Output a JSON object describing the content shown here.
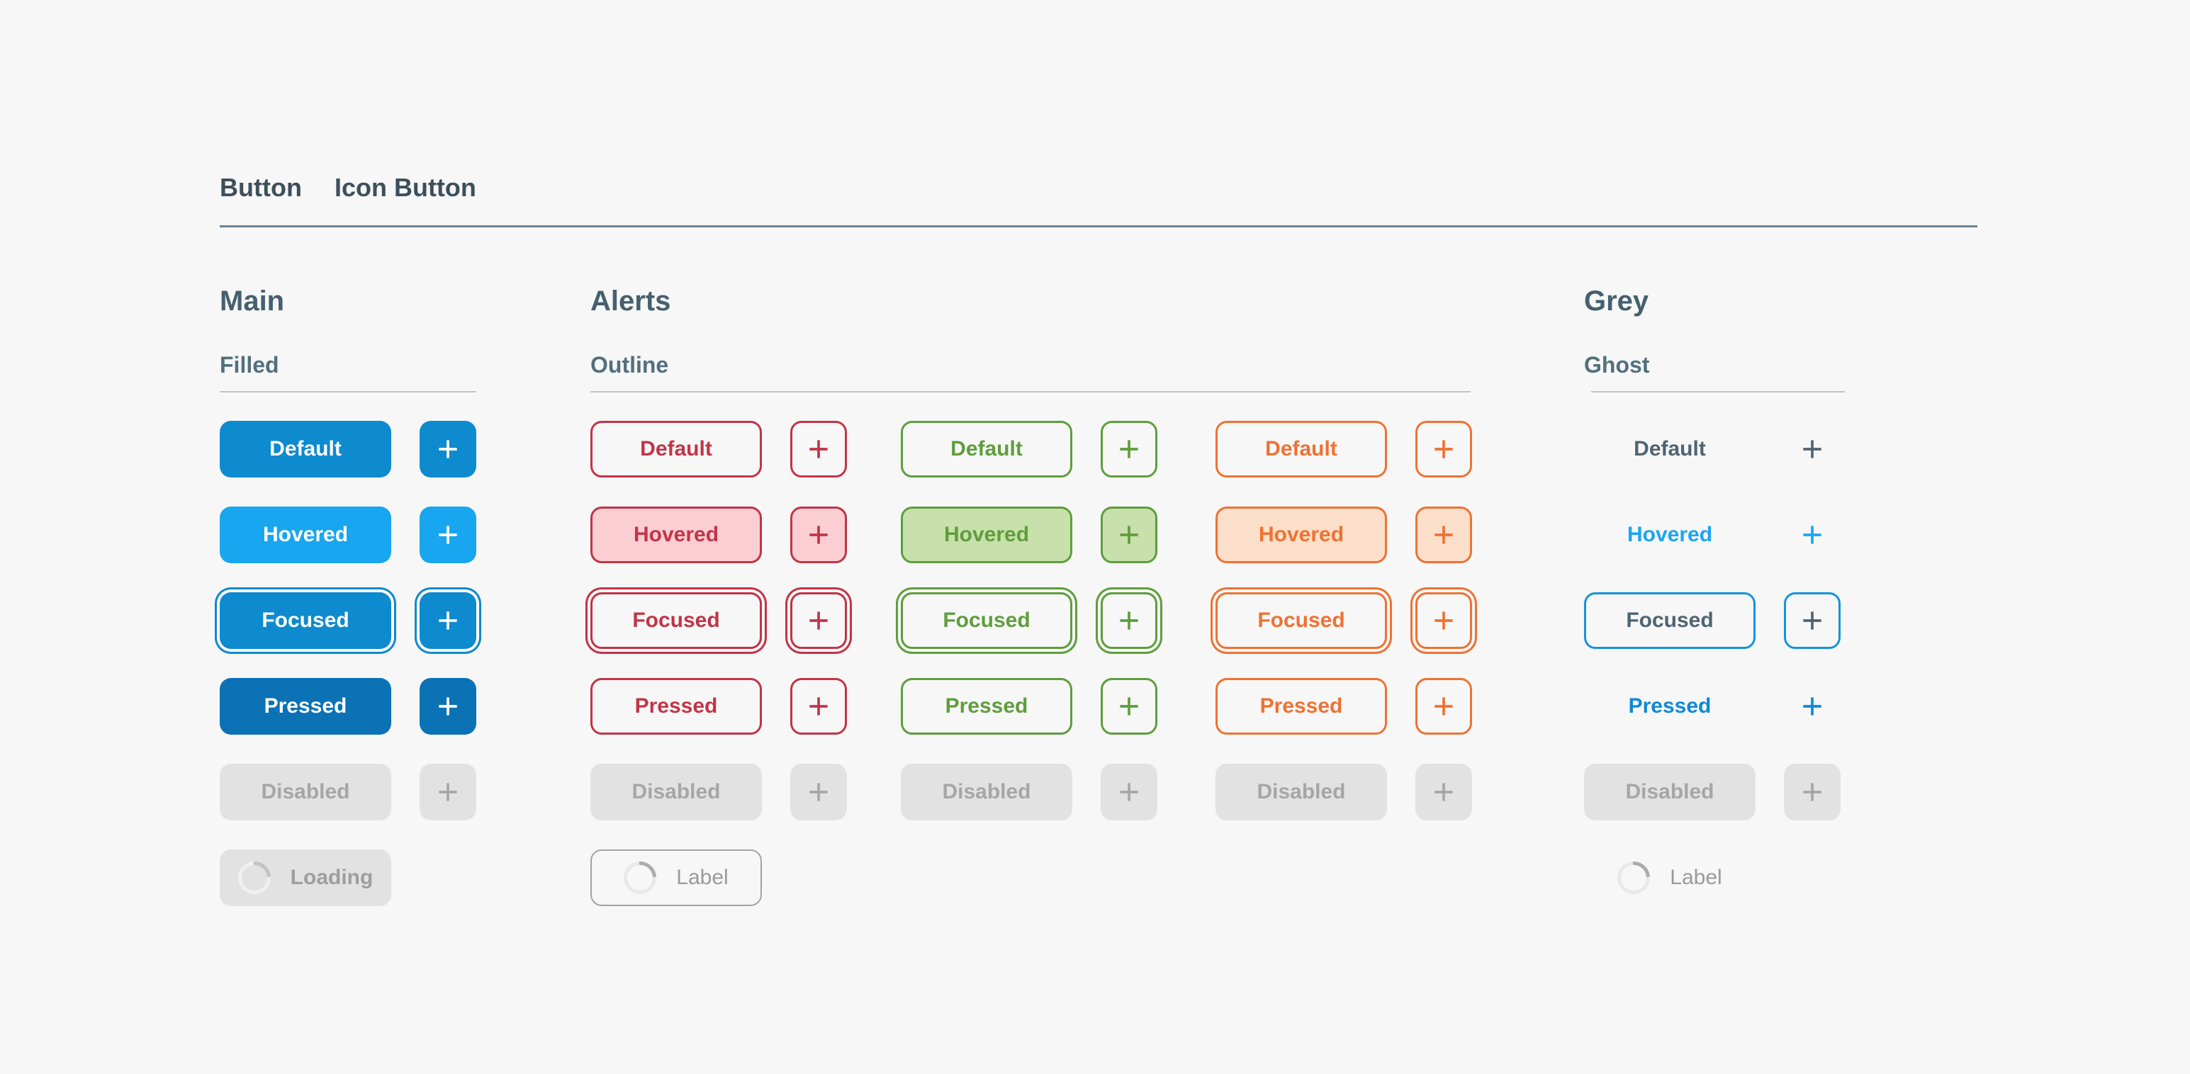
{
  "tabs": {
    "items": [
      {
        "label": "Button",
        "active": true
      },
      {
        "label": "Icon Button",
        "active": false
      }
    ]
  },
  "colors": {
    "background": "#f7f7f7",
    "tab_text": "#3d4f5b",
    "tab_divider": "#6e8290",
    "section_heading": "#45606e",
    "section_subheading": "#52707e",
    "section_rule": "#bdc6cc",
    "blue_default": "#0e8ace",
    "blue_hovered": "#18a6f0",
    "blue_pressed": "#0b72b6",
    "red": "#c23447",
    "red_hover_bg": "#fbced4",
    "green": "#5e9e3c",
    "green_hover_bg": "#c8e0ab",
    "orange": "#ee7233",
    "orange_hover_bg": "#fcdfca",
    "ghost_text": "#4f6472",
    "ghost_hovered": "#1aa5f2",
    "ghost_pressed": "#0f89d6",
    "ghost_focus_border": "#1593dd",
    "disabled_bg": "#e2e2e2",
    "disabled_text": "#a6a6a6",
    "loading_text": "#9a9a9a"
  },
  "sections": [
    {
      "id": "main",
      "title": "Main",
      "subtitle": "Filled",
      "columns": [
        {
          "accent": "blue",
          "style": "filled",
          "rows": [
            {
              "state": "default",
              "label": "Default",
              "has_icon": true
            },
            {
              "state": "hovered",
              "label": "Hovered",
              "has_icon": true
            },
            {
              "state": "focused",
              "label": "Focused",
              "has_icon": true
            },
            {
              "state": "pressed",
              "label": "Pressed",
              "has_icon": true
            },
            {
              "state": "disabled",
              "label": "Disabled",
              "has_icon": true
            },
            {
              "state": "loading",
              "label": "Loading",
              "has_icon": false
            }
          ]
        }
      ]
    },
    {
      "id": "alerts",
      "title": "Alerts",
      "subtitle": "Outline",
      "columns": [
        {
          "accent": "red",
          "style": "outline",
          "rows": [
            {
              "state": "default",
              "label": "Default",
              "has_icon": true
            },
            {
              "state": "hovered",
              "label": "Hovered",
              "has_icon": true
            },
            {
              "state": "focused",
              "label": "Focused",
              "has_icon": true
            },
            {
              "state": "pressed",
              "label": "Pressed",
              "has_icon": true
            },
            {
              "state": "disabled",
              "label": "Disabled",
              "has_icon": true
            },
            {
              "state": "loading",
              "label": "Label",
              "has_icon": false
            }
          ]
        },
        {
          "accent": "green",
          "style": "outline",
          "rows": [
            {
              "state": "default",
              "label": "Default",
              "has_icon": true
            },
            {
              "state": "hovered",
              "label": "Hovered",
              "has_icon": true
            },
            {
              "state": "focused",
              "label": "Focused",
              "has_icon": true
            },
            {
              "state": "pressed",
              "label": "Pressed",
              "has_icon": true
            },
            {
              "state": "disabled",
              "label": "Disabled",
              "has_icon": true
            }
          ]
        },
        {
          "accent": "orange",
          "style": "outline",
          "rows": [
            {
              "state": "default",
              "label": "Default",
              "has_icon": true
            },
            {
              "state": "hovered",
              "label": "Hovered",
              "has_icon": true
            },
            {
              "state": "focused",
              "label": "Focused",
              "has_icon": true
            },
            {
              "state": "pressed",
              "label": "Pressed",
              "has_icon": true
            },
            {
              "state": "disabled",
              "label": "Disabled",
              "has_icon": true
            }
          ]
        }
      ]
    },
    {
      "id": "grey",
      "title": "Grey",
      "subtitle": "Ghost",
      "columns": [
        {
          "accent": "ghost",
          "style": "ghost",
          "rows": [
            {
              "state": "default",
              "label": "Default",
              "has_icon": true
            },
            {
              "state": "hovered",
              "label": "Hovered",
              "has_icon": true
            },
            {
              "state": "focused",
              "label": "Focused",
              "has_icon": true
            },
            {
              "state": "pressed",
              "label": "Pressed",
              "has_icon": true
            },
            {
              "state": "disabled",
              "label": "Disabled",
              "has_icon": true
            },
            {
              "state": "loading",
              "label": "Label",
              "has_icon": false
            }
          ]
        }
      ]
    }
  ]
}
